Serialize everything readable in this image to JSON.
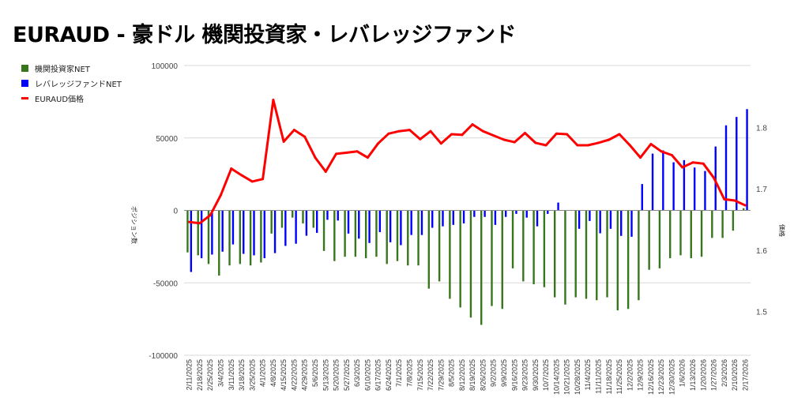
{
  "chart_data": {
    "type": "bar+line",
    "title": "EURAUD - 豪ドル 機関投資家・レバレッジファンド",
    "ylabel_left": "ポジション数",
    "ylabel_right": "価格",
    "ylim_left": [
      -100000,
      100000
    ],
    "yticks_left": [
      "100000",
      "50000",
      "0",
      "-50000",
      "-100000"
    ],
    "yticks_left_values": [
      100000,
      50000,
      0,
      -50000,
      -100000
    ],
    "ylim_right": [
      1.455,
      1.89
    ],
    "yticks_right": [
      "1.8",
      "1.7",
      "1.6",
      "1.5"
    ],
    "yticks_right_values": [
      1.8,
      1.7,
      1.6,
      1.5
    ],
    "legend_position": "top-left",
    "grid": true,
    "colors": {
      "institutional": "#38761d",
      "leveraged": "#0000ff",
      "price": "#ff0000",
      "grid": "#d9d9d9",
      "zero": "#888888"
    },
    "categories": [
      "2/11/2025",
      "2/18/2025",
      "2/25/2025",
      "3/4/2025",
      "3/11/2025",
      "3/18/2025",
      "3/25/2025",
      "4/1/2025",
      "4/8/2025",
      "4/15/2025",
      "4/22/2025",
      "4/29/2025",
      "5/6/2025",
      "5/13/2025",
      "5/20/2025",
      "5/27/2025",
      "6/3/2025",
      "6/10/2025",
      "6/17/2025",
      "6/24/2025",
      "7/1/2025",
      "7/8/2025",
      "7/15/2025",
      "7/22/2025",
      "7/29/2025",
      "8/5/2025",
      "8/12/2025",
      "8/19/2025",
      "8/26/2025",
      "9/2/2025",
      "9/9/2025",
      "9/16/2025",
      "9/23/2025",
      "9/30/2025",
      "10/7/2025",
      "10/14/2025",
      "10/21/2025",
      "10/28/2025",
      "11/4/2025",
      "11/11/2025",
      "11/18/2025",
      "11/25/2025",
      "12/2/2025",
      "12/9/2025",
      "12/16/2025",
      "12/23/2025",
      "12/30/2025",
      "1/6/2026",
      "1/13/2026",
      "1/20/2026",
      "1/27/2026",
      "2/3/2026",
      "2/10/2026",
      "2/17/2026"
    ],
    "series": [
      {
        "name": "機関投資家NET",
        "axis": "left",
        "kind": "bar",
        "values": [
          -29000,
          -31000,
          -37000,
          -45000,
          -38000,
          -37000,
          -38000,
          -36000,
          -16000,
          -12000,
          -5000,
          -9000,
          -12000,
          -28000,
          -35000,
          -32000,
          -32000,
          -33000,
          -32000,
          -37000,
          -35000,
          -38000,
          -38000,
          -54000,
          -49000,
          -61000,
          -67000,
          -74000,
          -79000,
          -66000,
          -68000,
          -40000,
          -49000,
          -51000,
          -53000,
          -60000,
          -65000,
          -60000,
          -61000,
          -62000,
          -60000,
          -69000,
          -68000,
          -62000,
          -41000,
          -40000,
          -33000,
          -31000,
          -33000,
          -32000,
          -19000,
          -19000,
          -14000,
          1500
        ]
      },
      {
        "name": "レバレッジファンドNET",
        "axis": "left",
        "kind": "bar",
        "values": [
          -42500,
          -33000,
          -30500,
          -28500,
          -23500,
          -30000,
          -31000,
          -33000,
          -29500,
          -24500,
          -23000,
          -17500,
          -15500,
          -6500,
          -7000,
          -16000,
          -19500,
          -22500,
          -15000,
          -22000,
          -24000,
          -17000,
          -17000,
          -12000,
          -11000,
          -10000,
          -9000,
          -4500,
          -4500,
          -10000,
          -4500,
          -2400,
          -5000,
          -11000,
          -2400,
          5400,
          0,
          -12700,
          -7300,
          -15800,
          -12700,
          -17600,
          -18200,
          18200,
          39200,
          41400,
          33200,
          34700,
          29600,
          27200,
          44100,
          58700,
          64500,
          69900
        ]
      },
      {
        "name": "EURAUD価格",
        "axis": "right",
        "kind": "line",
        "values": [
          1.646,
          1.644,
          1.657,
          1.69,
          1.733,
          1.722,
          1.712,
          1.716,
          1.845,
          1.777,
          1.796,
          1.785,
          1.751,
          1.728,
          1.757,
          1.759,
          1.761,
          1.751,
          1.774,
          1.79,
          1.794,
          1.796,
          1.781,
          1.794,
          1.774,
          1.789,
          1.788,
          1.805,
          1.794,
          1.787,
          1.78,
          1.776,
          1.791,
          1.775,
          1.771,
          1.79,
          1.789,
          1.771,
          1.771,
          1.775,
          1.78,
          1.789,
          1.771,
          1.751,
          1.773,
          1.761,
          1.755,
          1.735,
          1.743,
          1.741,
          1.718,
          1.683,
          1.681,
          1.673
        ]
      }
    ]
  }
}
